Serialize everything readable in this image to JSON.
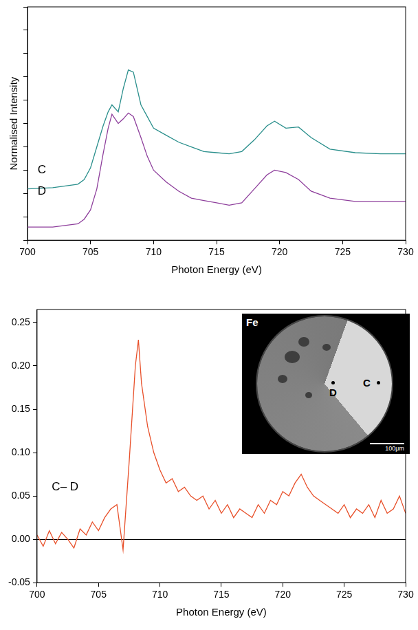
{
  "chart_data": [
    {
      "type": "line",
      "x_label": "Photon Energy (eV)",
      "y_label": "Normalised Intensity",
      "xlim": [
        700,
        730
      ],
      "xticks": [
        700,
        705,
        710,
        715,
        720,
        725,
        730
      ],
      "ylim": [
        0,
        1
      ],
      "yticks": [
        0,
        0.1,
        0.2,
        0.3,
        0.4,
        0.5,
        0.6,
        0.7,
        0.8,
        0.9,
        1
      ],
      "tick_labels": "x",
      "grid": false,
      "x": [
        700,
        702,
        704,
        704.5,
        705,
        705.5,
        706,
        706.4,
        706.7,
        707.2,
        707.6,
        708,
        708.4,
        709,
        709.5,
        710,
        711,
        712,
        713,
        714,
        715,
        716,
        717,
        718,
        719,
        719.6,
        720.5,
        721.5,
        722.5,
        724,
        726,
        728,
        730
      ],
      "series": [
        {
          "name": "C",
          "color": "#2a8f8c",
          "values": [
            0.22,
            0.225,
            0.24,
            0.26,
            0.31,
            0.4,
            0.49,
            0.55,
            0.58,
            0.55,
            0.65,
            0.73,
            0.72,
            0.58,
            0.53,
            0.48,
            0.45,
            0.42,
            0.4,
            0.38,
            0.375,
            0.37,
            0.38,
            0.43,
            0.49,
            0.51,
            0.48,
            0.485,
            0.44,
            0.39,
            0.375,
            0.37,
            0.37
          ]
        },
        {
          "name": "D",
          "color": "#8e3f9c",
          "values": [
            0.056,
            0.056,
            0.07,
            0.09,
            0.13,
            0.22,
            0.37,
            0.48,
            0.54,
            0.5,
            0.52,
            0.545,
            0.53,
            0.44,
            0.36,
            0.3,
            0.25,
            0.21,
            0.18,
            0.17,
            0.16,
            0.15,
            0.16,
            0.22,
            0.28,
            0.3,
            0.29,
            0.26,
            0.21,
            0.18,
            0.166,
            0.166,
            0.166
          ]
        }
      ],
      "annotations": [
        {
          "text": "C",
          "x": 700.8,
          "y": 0.3
        },
        {
          "text": "D",
          "x": 700.8,
          "y": 0.21
        }
      ]
    },
    {
      "type": "line",
      "x_label": "Photon Energy (eV)",
      "xlim": [
        700,
        730
      ],
      "xticks": [
        700,
        705,
        710,
        715,
        720,
        725,
        730
      ],
      "ylim": [
        -0.05,
        0.265
      ],
      "yticks": [
        -0.05,
        {
          "value": 0,
          "label": "0.00"
        },
        0.05,
        {
          "value": 0.1,
          "label": "0.10"
        },
        0.15,
        {
          "value": 0.2,
          "label": "0.20"
        },
        0.25
      ],
      "grid": false,
      "x": [
        700,
        700.5,
        701,
        701.5,
        702,
        702.5,
        703,
        703.5,
        704,
        704.5,
        705,
        705.5,
        706,
        706.5,
        707,
        707.5,
        708,
        708.25,
        708.5,
        709,
        709.5,
        710,
        710.5,
        711,
        711.5,
        712,
        712.5,
        713,
        713.5,
        714,
        714.5,
        715,
        715.5,
        716,
        716.5,
        717,
        717.5,
        718,
        718.5,
        719,
        719.5,
        720,
        720.5,
        721,
        721.5,
        722,
        722.5,
        723,
        723.5,
        724,
        724.5,
        725,
        725.5,
        726,
        726.5,
        727,
        727.5,
        728,
        728.5,
        729,
        729.5,
        730
      ],
      "series": [
        {
          "name": "C– D",
          "color": "#e8502a",
          "values": [
            0.005,
            -0.008,
            0.01,
            -0.005,
            0.008,
            0,
            -0.01,
            0.012,
            0.005,
            0.02,
            0.01,
            0.025,
            0.035,
            0.04,
            -0.012,
            0.09,
            0.2,
            0.23,
            0.18,
            0.13,
            0.1,
            0.08,
            0.065,
            0.07,
            0.055,
            0.06,
            0.05,
            0.045,
            0.05,
            0.035,
            0.045,
            0.03,
            0.04,
            0.025,
            0.035,
            0.03,
            0.025,
            0.04,
            0.03,
            0.045,
            0.04,
            0.055,
            0.05,
            0.065,
            0.075,
            0.06,
            0.05,
            0.045,
            0.04,
            0.035,
            0.03,
            0.04,
            0.025,
            0.035,
            0.03,
            0.04,
            0.025,
            0.045,
            0.03,
            0.035,
            0.05,
            0.03
          ]
        }
      ],
      "annotations": [
        {
          "text": "C– D",
          "x": 701.2,
          "y": 0.06
        }
      ],
      "inset": {
        "title": "Fe",
        "points": [
          "C",
          "D"
        ],
        "scale_bar": "100μm"
      }
    }
  ]
}
